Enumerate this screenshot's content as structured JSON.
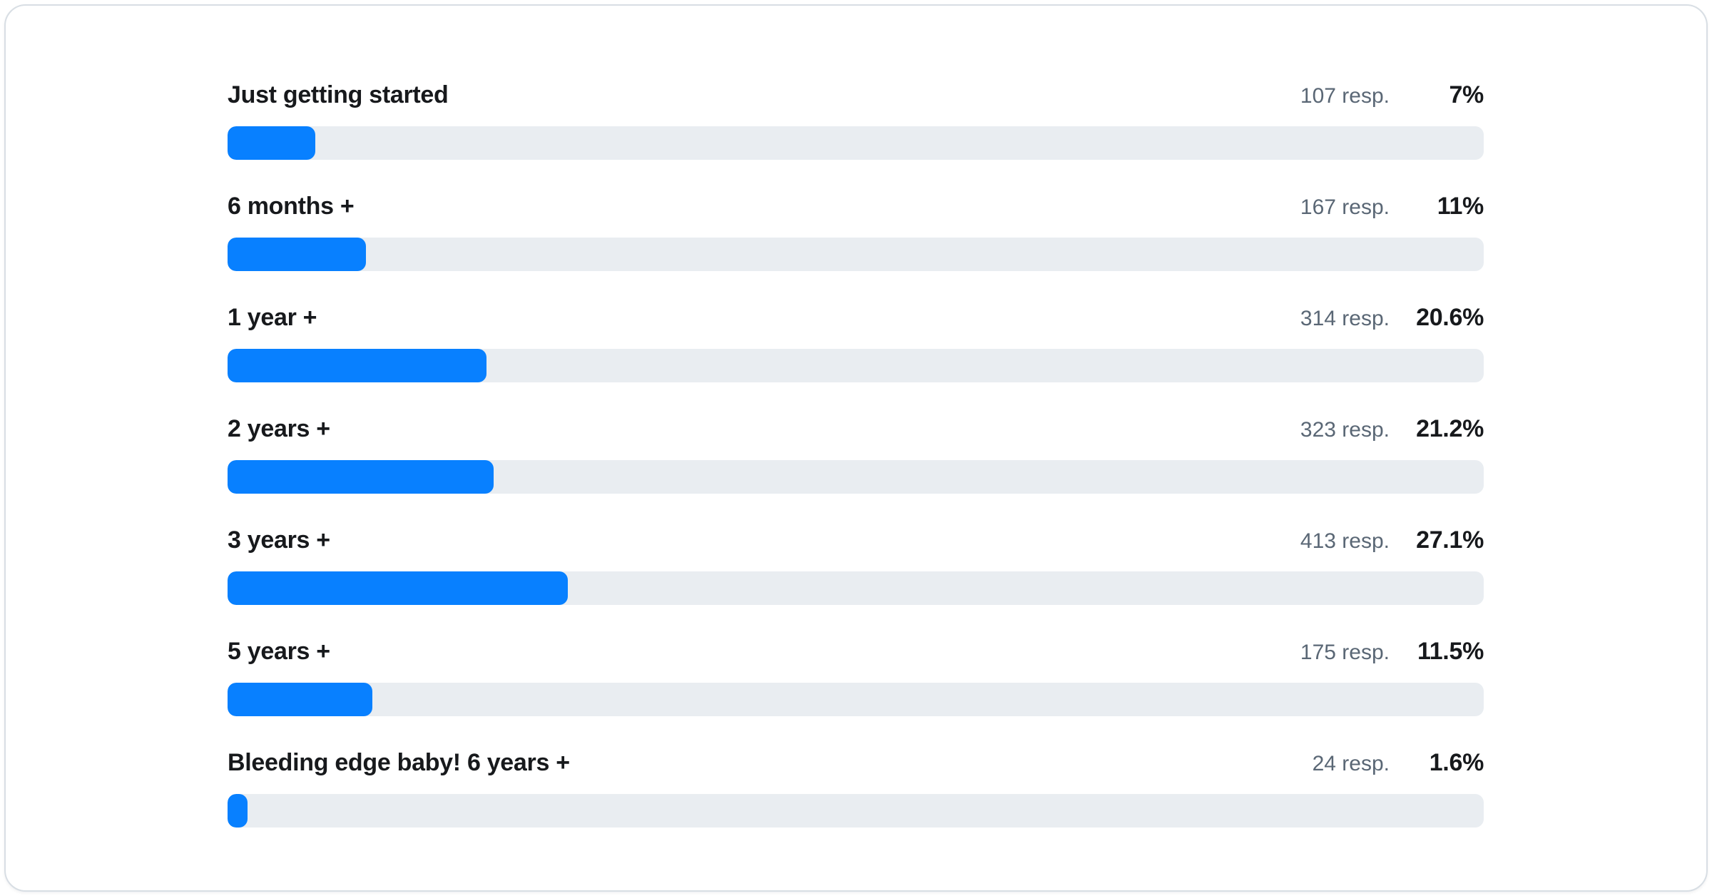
{
  "colors": {
    "bar_fill": "#0880ff",
    "bar_track": "#e9edf1",
    "label_text": "#17191c",
    "resp_text": "#5a6775",
    "card_border": "#d8dee4",
    "card_background": "#ffffff"
  },
  "chart_data": {
    "type": "bar",
    "orientation": "horizontal",
    "title": "",
    "xlabel": "",
    "ylabel": "",
    "xlim": [
      0,
      100
    ],
    "value_suffix": "%",
    "grid": false,
    "legend": false,
    "categories": [
      "Just getting started",
      "6 months +",
      "1 year +",
      "2 years +",
      "3 years +",
      "5 years +",
      "Bleeding edge baby! 6 years +"
    ],
    "values": [
      7,
      11,
      20.6,
      21.2,
      27.1,
      11.5,
      1.6
    ],
    "responses": [
      107,
      167,
      314,
      323,
      413,
      175,
      24
    ],
    "rows": [
      {
        "label": "Just getting started",
        "resp_label": "107 resp.",
        "pct_label": "7%",
        "pct": 7
      },
      {
        "label": "6 months +",
        "resp_label": "167 resp.",
        "pct_label": "11%",
        "pct": 11
      },
      {
        "label": "1 year +",
        "resp_label": "314 resp.",
        "pct_label": "20.6%",
        "pct": 20.6
      },
      {
        "label": "2 years +",
        "resp_label": "323 resp.",
        "pct_label": "21.2%",
        "pct": 21.2
      },
      {
        "label": "3 years +",
        "resp_label": "413 resp.",
        "pct_label": "27.1%",
        "pct": 27.1
      },
      {
        "label": "5 years +",
        "resp_label": "175 resp.",
        "pct_label": "11.5%",
        "pct": 11.5
      },
      {
        "label": "Bleeding edge baby! 6 years +",
        "resp_label": "24 resp.",
        "pct_label": "1.6%",
        "pct": 1.6
      }
    ]
  }
}
